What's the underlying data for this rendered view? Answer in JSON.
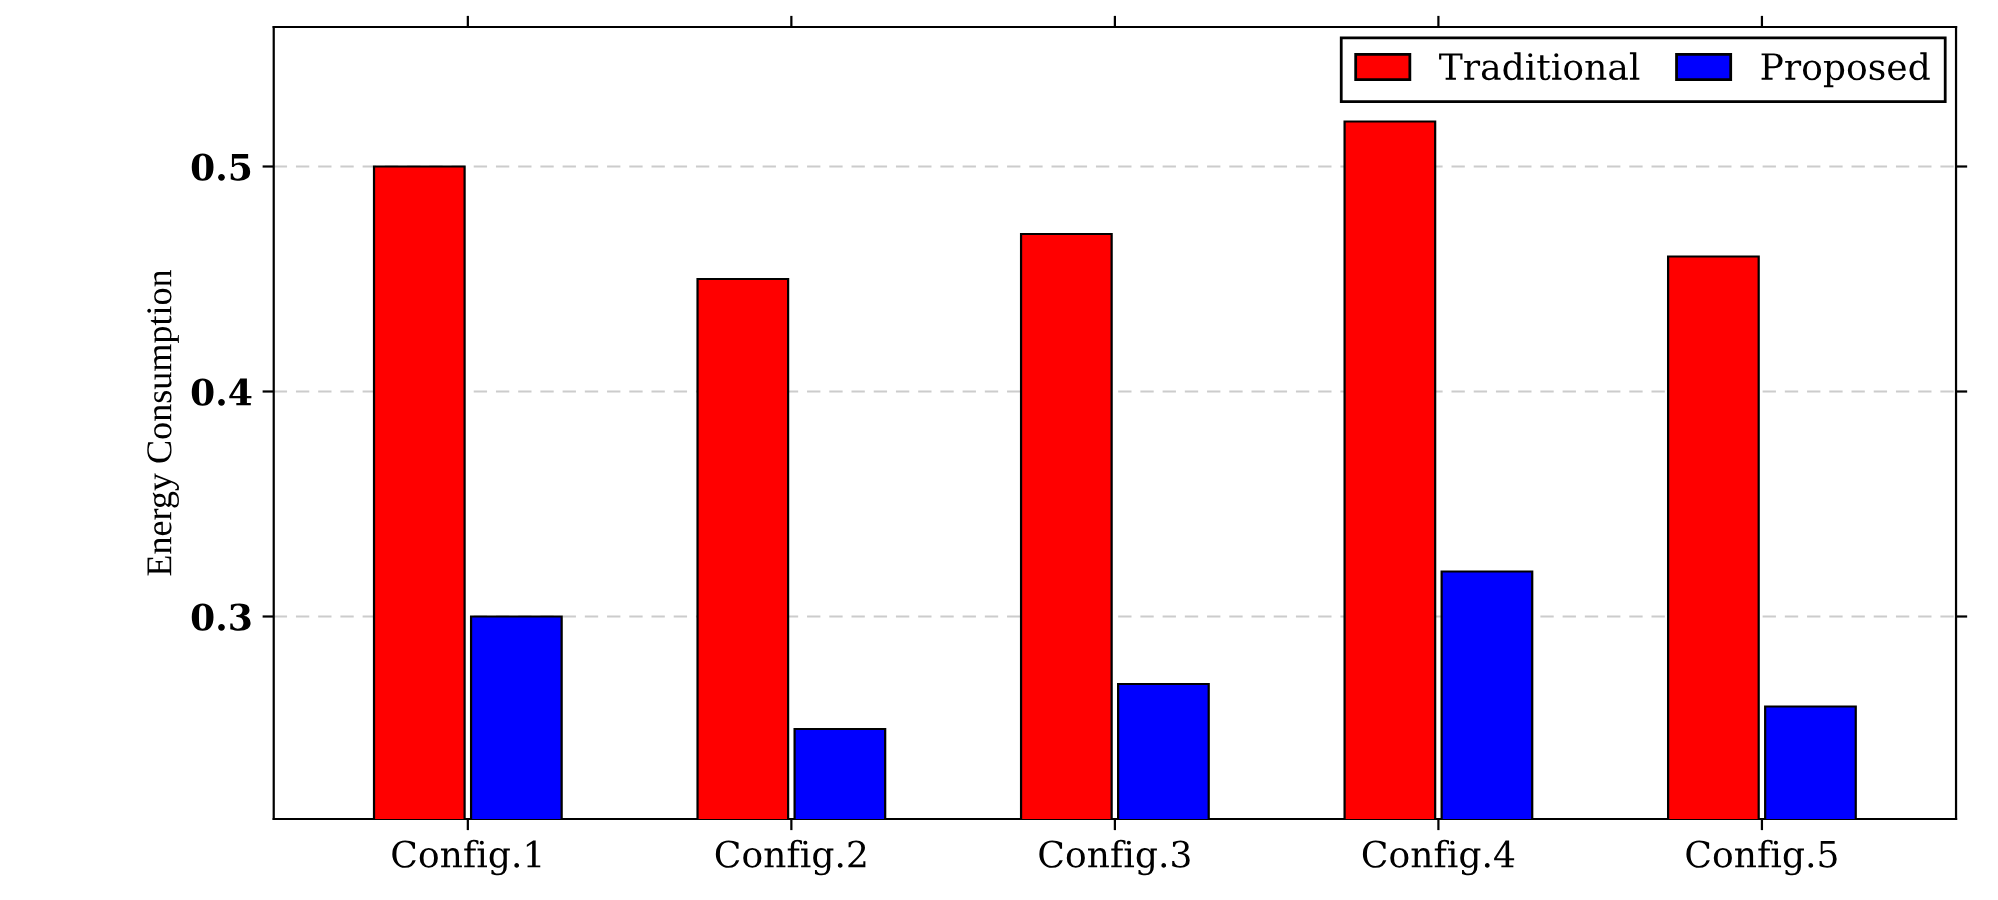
{
  "chart_data": {
    "type": "bar",
    "ylabel": "Energy Consumption",
    "categories": [
      "Config.1",
      "Config.2",
      "Config.3",
      "Config.4",
      "Config.5"
    ],
    "series": [
      {
        "name": "Traditional",
        "color": "#ff0000",
        "values": [
          0.5,
          0.45,
          0.47,
          0.52,
          0.46
        ]
      },
      {
        "name": "Proposed",
        "color": "#0000ff",
        "values": [
          0.3,
          0.25,
          0.27,
          0.32,
          0.26
        ]
      }
    ],
    "ylim": [
      0.21,
      0.562
    ],
    "yticks": [
      0.3,
      0.4,
      0.5
    ],
    "grid": "y",
    "legend": "top right"
  }
}
